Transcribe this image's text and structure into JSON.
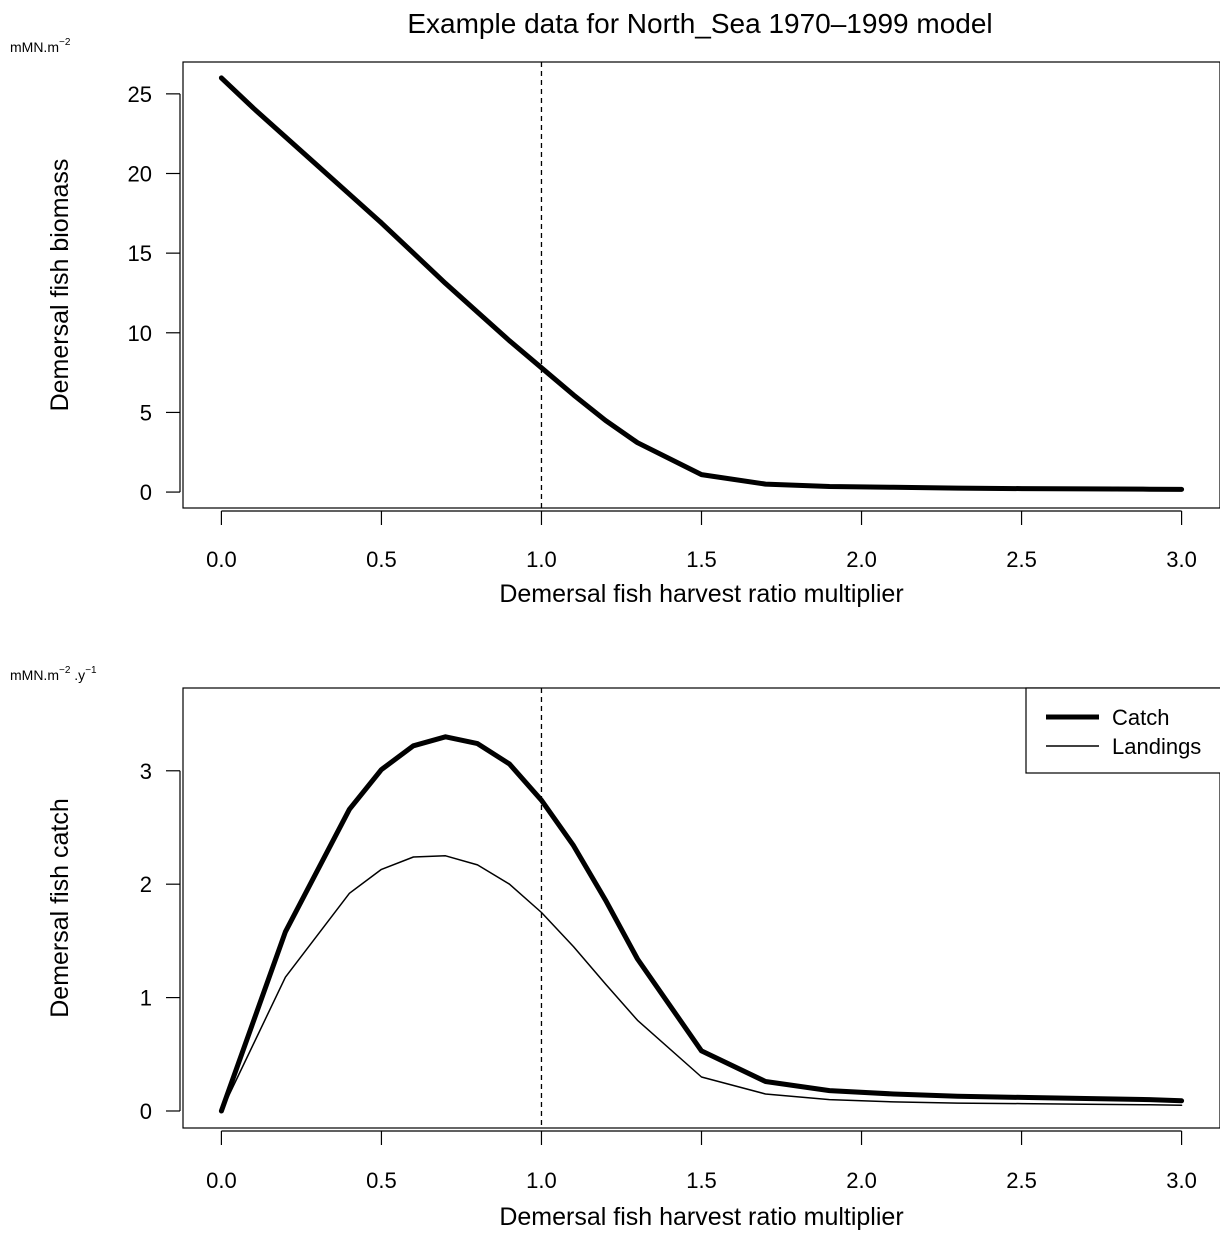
{
  "chart_data": [
    {
      "type": "line",
      "title": "Example data for  North_Sea   1970–1999  model",
      "unit_label": {
        "base": "mMN.m",
        "sup": "−2"
      },
      "xlabel": "Demersal fish harvest ratio multiplier",
      "ylabel": "Demersal fish biomass",
      "xlim": [
        -0.12,
        3.12
      ],
      "ylim": [
        -1.0,
        27.0
      ],
      "x_ticks": [
        0,
        0.5,
        1,
        1.5,
        2,
        2.5,
        3
      ],
      "x_tick_labels": [
        "0.0",
        "0.5",
        "1.0",
        "1.5",
        "2.0",
        "2.5",
        "3.0"
      ],
      "y_ticks": [
        0,
        5,
        10,
        15,
        20,
        25
      ],
      "y_tick_labels": [
        "0",
        "5",
        "10",
        "15",
        "20",
        "25"
      ],
      "vline": 1.0,
      "x": [
        0,
        0.1,
        0.2,
        0.3,
        0.4,
        0.5,
        0.6,
        0.7,
        0.8,
        0.9,
        1.0,
        1.1,
        1.2,
        1.3,
        1.5,
        1.7,
        1.9,
        2.1,
        2.3,
        2.5,
        2.7,
        2.9,
        3.0
      ],
      "series": [
        {
          "values": [
            26.0,
            24.1,
            22.3,
            20.5,
            18.7,
            16.9,
            15.0,
            13.1,
            11.3,
            9.5,
            7.8,
            6.1,
            4.5,
            3.1,
            1.1,
            0.5,
            0.35,
            0.3,
            0.25,
            0.22,
            0.2,
            0.18,
            0.17
          ],
          "line_width": 5
        }
      ],
      "grid": false
    },
    {
      "type": "line",
      "title": "",
      "unit_label": {
        "base": "mMN.m",
        "sup": "−2",
        "mid": " .y",
        "sup2": "−1"
      },
      "xlabel": "Demersal fish harvest ratio multiplier",
      "ylabel": "Demersal fish catch",
      "xlim": [
        -0.12,
        3.12
      ],
      "ylim": [
        -0.15,
        3.73
      ],
      "x_ticks": [
        0,
        0.5,
        1,
        1.5,
        2,
        2.5,
        3
      ],
      "x_tick_labels": [
        "0.0",
        "0.5",
        "1.0",
        "1.5",
        "2.0",
        "2.5",
        "3.0"
      ],
      "y_ticks": [
        0,
        1,
        2,
        3
      ],
      "y_tick_labels": [
        "0",
        "1",
        "2",
        "3"
      ],
      "vline": 1.0,
      "x": [
        0,
        0.2,
        0.4,
        0.5,
        0.6,
        0.7,
        0.8,
        0.9,
        1.0,
        1.1,
        1.2,
        1.3,
        1.5,
        1.7,
        1.9,
        2.1,
        2.3,
        2.5,
        2.7,
        2.9,
        3.0
      ],
      "series": [
        {
          "name": "Catch",
          "values": [
            0.0,
            1.58,
            2.66,
            3.01,
            3.22,
            3.3,
            3.24,
            3.06,
            2.74,
            2.34,
            1.86,
            1.34,
            0.53,
            0.26,
            0.18,
            0.15,
            0.13,
            0.12,
            0.11,
            0.1,
            0.09
          ],
          "line_width": 5
        },
        {
          "name": "Landings",
          "values": [
            0.0,
            1.18,
            1.92,
            2.13,
            2.24,
            2.25,
            2.17,
            2.0,
            1.75,
            1.45,
            1.12,
            0.8,
            0.3,
            0.15,
            0.1,
            0.08,
            0.07,
            0.065,
            0.06,
            0.055,
            0.05
          ],
          "line_width": 1.5
        }
      ],
      "legend": "top-right",
      "grid": false
    }
  ]
}
